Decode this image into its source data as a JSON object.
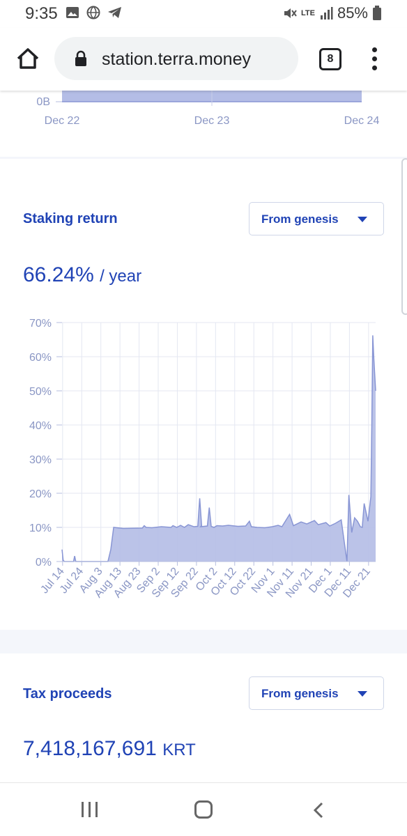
{
  "status_bar": {
    "time": "9:35",
    "battery": "85%",
    "network": "LTE"
  },
  "browser": {
    "url": "station.terra.money",
    "tab_count": "8"
  },
  "top_chart": {
    "y_label": "0B",
    "x_ticks": [
      "Dec 22",
      "Dec 23",
      "Dec 24"
    ]
  },
  "staking": {
    "title": "Staking return",
    "range_select": "From genesis",
    "value": "66.24%",
    "unit": "/ year"
  },
  "tax": {
    "title": "Tax proceeds",
    "range_select": "From genesis",
    "value": "7,418,167,691",
    "unit": "KRT"
  },
  "chart_data": [
    {
      "type": "area",
      "y_tick_labels": [
        "0B"
      ],
      "categories": [
        "Dec 22",
        "Dec 23",
        "Dec 24"
      ],
      "series": [
        {
          "values": [
            0.45,
            0.45,
            0.45
          ]
        }
      ],
      "ylim": [
        0,
        1
      ]
    },
    {
      "type": "area",
      "y_tick_labels": [
        "0%",
        "10%",
        "20%",
        "30%",
        "40%",
        "50%",
        "60%",
        "70%"
      ],
      "x_tick_labels": [
        "Jul 14",
        "Jul 24",
        "Aug 3",
        "Aug 13",
        "Aug 23",
        "Sep 2",
        "Sep 12",
        "Sep 22",
        "Oct 2",
        "Oct 12",
        "Oct 22",
        "Nov 1",
        "Nov 11",
        "Nov 21",
        "Dec 1",
        "Dec 11",
        "Dec 21"
      ],
      "x_range_days": [
        0,
        164
      ],
      "ylim": [
        0,
        70
      ],
      "grid": true,
      "series": [
        {
          "x": [
            0,
            0.6,
            1.2,
            6,
            6.6,
            7.2,
            10,
            14,
            24,
            25.5,
            27,
            32,
            42,
            43,
            44,
            47,
            52,
            57,
            58,
            60,
            62,
            64,
            66,
            69,
            71,
            72,
            73,
            72.5,
            76,
            77,
            78,
            79.5,
            81,
            84,
            87,
            92,
            96,
            98,
            99,
            102,
            106,
            110,
            113,
            115,
            119,
            121,
            125,
            128,
            132,
            134,
            138,
            140,
            143,
            146,
            149,
            150,
            151.5,
            153,
            154.5,
            156,
            157,
            158,
            160,
            161.5,
            162,
            162.5,
            163,
            163.5,
            164
          ],
          "y": [
            3.5,
            0.4,
            0,
            0,
            1.6,
            0,
            0,
            0,
            0,
            3.5,
            10,
            9.7,
            9.8,
            10.5,
            10,
            9.9,
            10.2,
            10,
            10.5,
            10,
            10.6,
            10,
            10.8,
            10.2,
            10.3,
            18.5,
            10.5,
            10.2,
            10.4,
            15.8,
            10.3,
            10,
            10.5,
            10.4,
            10.6,
            10.3,
            10.4,
            11.8,
            10.2,
            10,
            9.9,
            10.2,
            10.6,
            10.2,
            13.8,
            10.5,
            11.6,
            11,
            12,
            10.8,
            11.4,
            10.4,
            11.2,
            12.2,
            0,
            19.5,
            8.5,
            12.8,
            11.8,
            10.2,
            10,
            17,
            11.8,
            19,
            40,
            66.24,
            60,
            55,
            50
          ]
        }
      ]
    }
  ]
}
